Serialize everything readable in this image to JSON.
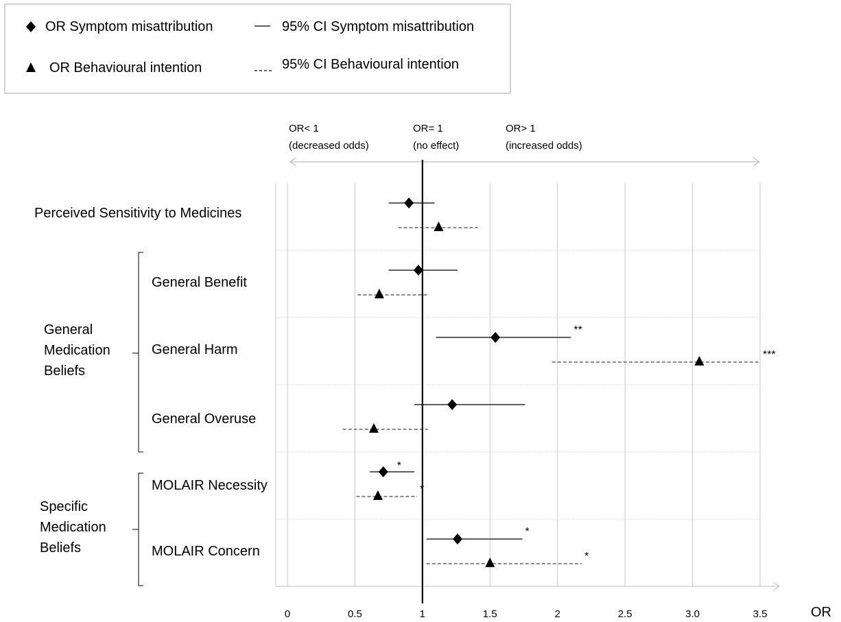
{
  "chart_data": {
    "type": "forest",
    "xlabel": "OR",
    "xlim": [
      0,
      3.5
    ],
    "x_ticks": [
      {
        "value": 0,
        "label": "0"
      },
      {
        "value": 0.5,
        "label": "0.5"
      },
      {
        "value": 1,
        "label": "1"
      },
      {
        "value": 1.5,
        "label": "1.5"
      },
      {
        "value": 2,
        "label": "2"
      },
      {
        "value": 2.5,
        "label": "2.5"
      },
      {
        "value": 3,
        "label": "3.0"
      },
      {
        "value": 3.5,
        "label": "3.5"
      }
    ],
    "reference_line": 1,
    "legend": {
      "items": [
        {
          "marker": "diamond",
          "label": "OR Symptom misattribution"
        },
        {
          "marker": "solid-line",
          "label": "95% CI Symptom misattribution"
        },
        {
          "marker": "triangle",
          "label": "OR Behavioural intention"
        },
        {
          "marker": "dashed-line",
          "label": "95% CI Behavioural intention"
        }
      ]
    },
    "annotations": {
      "left": {
        "line1": "OR< 1",
        "line2": "(decreased odds)"
      },
      "center": {
        "line1": "OR= 1",
        "line2": "(no effect)"
      },
      "right": {
        "line1": "OR> 1",
        "line2": "(increased odds)"
      }
    },
    "groups": [
      {
        "label_lines": [
          "General",
          "Medication",
          "Beliefs"
        ]
      },
      {
        "label_lines": [
          "Specific",
          "Medication",
          "Beliefs"
        ]
      }
    ],
    "series": [
      {
        "name": "OR Symptom misattribution",
        "marker": "diamond",
        "ci_style": "solid"
      },
      {
        "name": "OR Behavioural intention",
        "marker": "triangle",
        "ci_style": "dashed"
      }
    ],
    "rows": [
      {
        "label": "Perceived Sensitivity to Medicines",
        "estimates": [
          {
            "or": 0.9,
            "ci": [
              0.75,
              1.09
            ],
            "sig": ""
          },
          {
            "or": 1.12,
            "ci": [
              0.82,
              1.41
            ],
            "sig": ""
          }
        ]
      },
      {
        "label": "General Benefit",
        "estimates": [
          {
            "or": 0.97,
            "ci": [
              0.75,
              1.26
            ],
            "sig": ""
          },
          {
            "or": 0.68,
            "ci": [
              0.52,
              1.05
            ],
            "sig": ""
          }
        ]
      },
      {
        "label": "General Harm",
        "estimates": [
          {
            "or": 1.54,
            "ci": [
              1.1,
              2.1
            ],
            "sig": "**"
          },
          {
            "or": 3.05,
            "ci": [
              1.96,
              3.5
            ],
            "sig": "***"
          }
        ]
      },
      {
        "label": "General Overuse",
        "estimates": [
          {
            "or": 1.22,
            "ci": [
              0.94,
              1.76
            ],
            "sig": ""
          },
          {
            "or": 0.64,
            "ci": [
              0.41,
              1.04
            ],
            "sig": ""
          }
        ]
      },
      {
        "label": "MOLAIR Necessity",
        "estimates": [
          {
            "or": 0.71,
            "ci": [
              0.61,
              0.94
            ],
            "sig": "*"
          },
          {
            "or": 0.67,
            "ci": [
              0.51,
              0.96
            ],
            "sig": "*"
          }
        ]
      },
      {
        "label": "MOLAIR Concern",
        "estimates": [
          {
            "or": 1.26,
            "ci": [
              1.03,
              1.74
            ],
            "sig": "*"
          },
          {
            "or": 1.5,
            "ci": [
              1.03,
              2.18
            ],
            "sig": "*"
          }
        ]
      }
    ]
  }
}
